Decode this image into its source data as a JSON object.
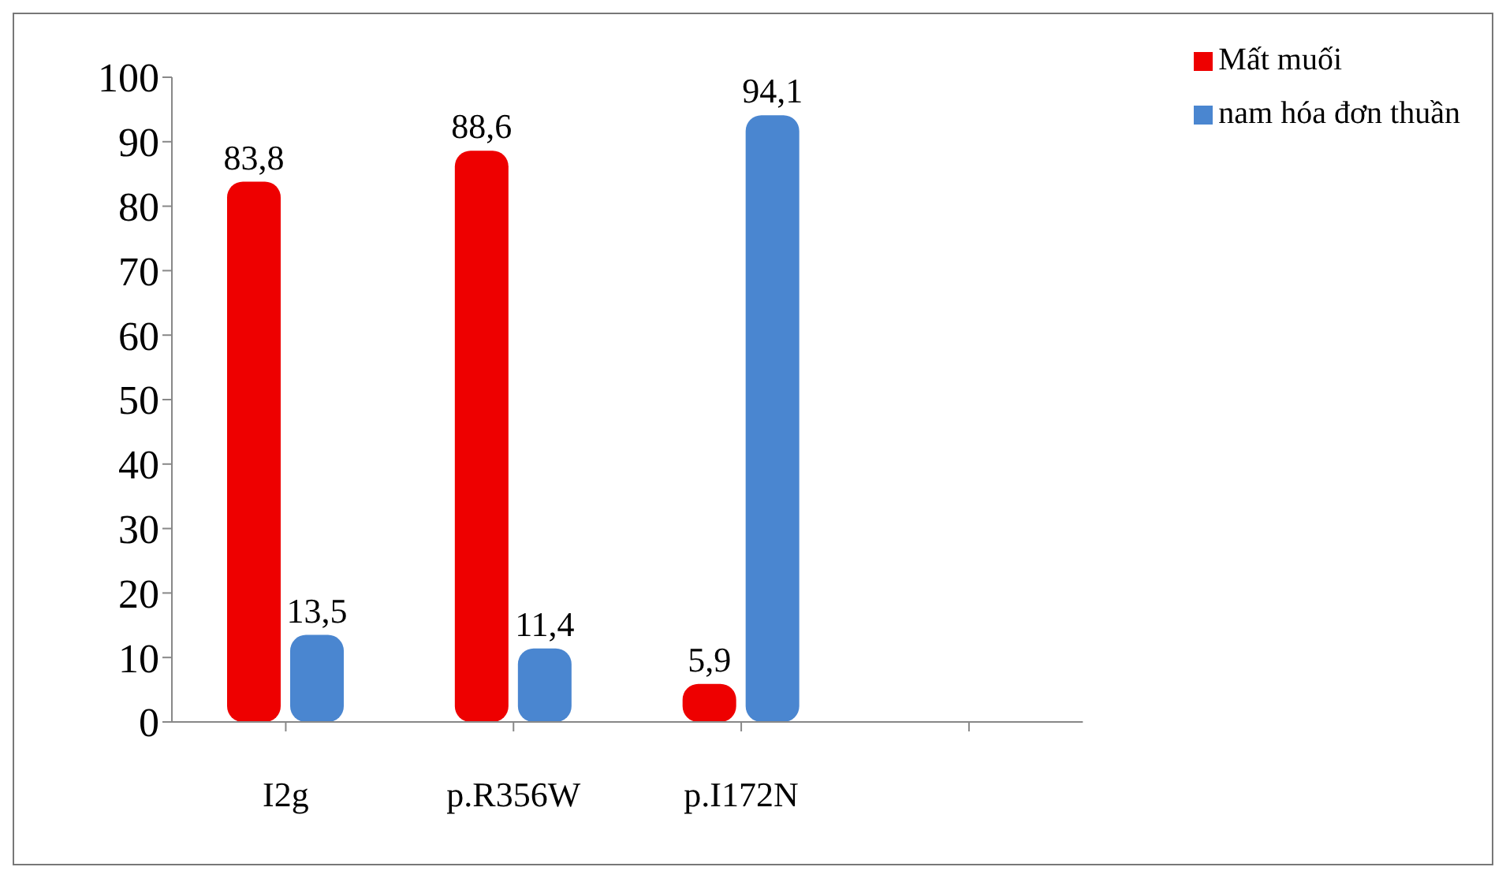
{
  "chart_data": {
    "type": "bar",
    "categories": [
      "I2g",
      "p.R356W",
      "p.I172N",
      null
    ],
    "series": [
      {
        "name": "Mất muối",
        "color": "#ee0000",
        "values": [
          83.8,
          88.6,
          5.9,
          null
        ],
        "value_labels": [
          "83,8",
          "88,6",
          "5,9",
          null
        ]
      },
      {
        "name": "nam hóa đơn thuần",
        "color": "#4a86d0",
        "values": [
          13.5,
          11.4,
          94.1,
          null
        ],
        "value_labels": [
          "13,5",
          "11,4",
          "94,1",
          null
        ]
      }
    ],
    "ylim": [
      0,
      100
    ],
    "yticks": [
      0,
      10,
      20,
      30,
      40,
      50,
      60,
      70,
      80,
      90,
      100
    ],
    "legend": "top right"
  }
}
